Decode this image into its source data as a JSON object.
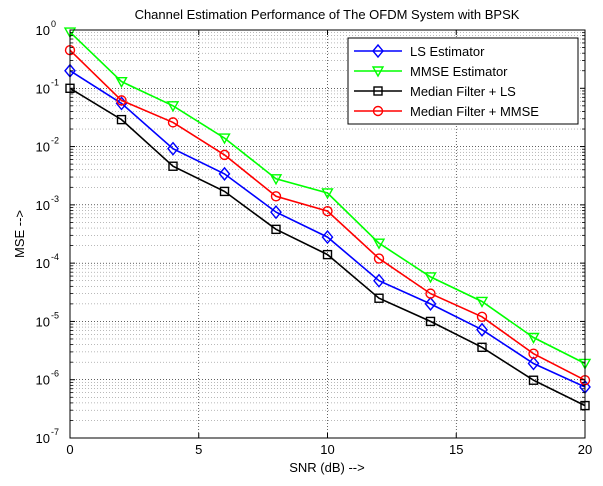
{
  "chart_data": {
    "type": "line",
    "title": "Channel Estimation Performance of The OFDM System with BPSK",
    "xlabel": "SNR (dB) -->",
    "ylabel": "MSE -->",
    "xlim": [
      0,
      20
    ],
    "ylim": [
      1e-07,
      1
    ],
    "yscale": "log",
    "grid": true,
    "legend_position": "top-right",
    "x_ticks": [
      0,
      5,
      10,
      15,
      20
    ],
    "y_tick_exponents": [
      0,
      -1,
      -2,
      -3,
      -4,
      -5,
      -6,
      -7
    ],
    "y_tick_base": "10",
    "x": [
      0,
      2,
      4,
      6,
      8,
      10,
      12,
      14,
      16,
      18,
      20
    ],
    "series": [
      {
        "name": "LS Estimator",
        "color": "#0000ff",
        "marker": "diamond",
        "values": [
          0.2,
          0.055,
          0.0092,
          0.0034,
          0.00075,
          0.00028,
          5e-05,
          2e-05,
          7.2e-06,
          1.9e-06,
          7.5e-07
        ]
      },
      {
        "name": "MMSE Estimator",
        "color": "#00ff00",
        "marker": "triangle-down",
        "values": [
          0.92,
          0.13,
          0.05,
          0.014,
          0.0028,
          0.0016,
          0.00022,
          5.8e-05,
          2.2e-05,
          5.3e-06,
          1.9e-06
        ]
      },
      {
        "name": "Median Filter + LS",
        "color": "#000000",
        "marker": "square",
        "values": [
          0.1,
          0.029,
          0.0046,
          0.0017,
          0.00038,
          0.00014,
          2.5e-05,
          1e-05,
          3.6e-06,
          9.8e-07,
          3.6e-07
        ]
      },
      {
        "name": "Median Filter + MMSE",
        "color": "#ff0000",
        "marker": "circle",
        "values": [
          0.45,
          0.062,
          0.026,
          0.0072,
          0.0014,
          0.00078,
          0.00012,
          3e-05,
          1.2e-05,
          2.8e-06,
          9.8e-07
        ]
      }
    ]
  }
}
